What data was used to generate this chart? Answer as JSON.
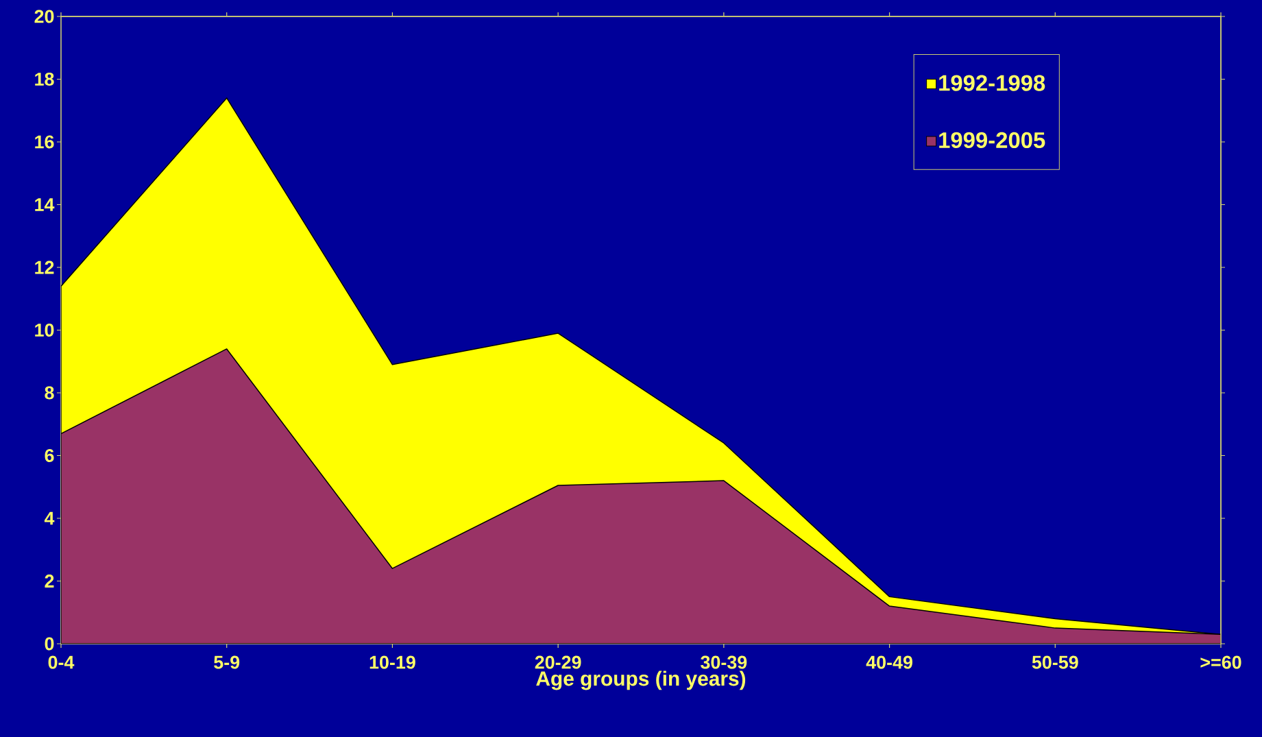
{
  "chart_data": {
    "type": "area",
    "xlabel": "Age groups (in years)",
    "categories": [
      "0-4",
      "5-9",
      "10-19",
      "20-29",
      "30-39",
      "40-49",
      "50-59",
      ">=60"
    ],
    "series": [
      {
        "name": "1992-1998",
        "color": "#ffff00",
        "values": [
          11.4,
          17.4,
          8.9,
          9.9,
          6.4,
          1.5,
          0.8,
          0.3
        ]
      },
      {
        "name": "1999-2005",
        "color": "#993366",
        "values": [
          6.7,
          9.4,
          2.4,
          5.05,
          5.2,
          1.2,
          0.5,
          0.3
        ]
      }
    ],
    "ylim": [
      0,
      20
    ],
    "yticks": [
      0,
      2,
      4,
      6,
      8,
      10,
      12,
      14,
      16,
      18,
      20
    ],
    "legend": "top right"
  }
}
